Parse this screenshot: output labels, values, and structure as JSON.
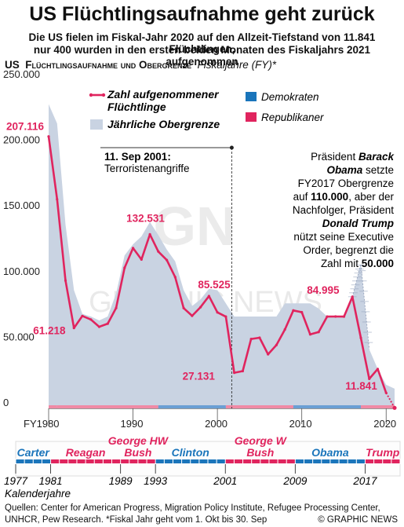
{
  "title": "US Flüchtlingsaufnahme geht zurück",
  "subtitle_line1": "Die US fielen im Fiskal-Jahr 2020 auf den Allzeit-Tiefstand von 11.841 Flüchtlingen,",
  "subtitle_line2": "nur 400 wurden in den ersten beiden Monaten des Fiskaljahrs 2021 aufgenommen",
  "chart_header": {
    "prefix": "US",
    "main": "Flüchtlingsaufnahme und Obergrenze",
    "suffix": "Fiskaljahre (FY)*"
  },
  "colors": {
    "admissions_line": "#e0245e",
    "ceiling_area": "#c9d3e2",
    "democrats": "#1a75bb",
    "republicans": "#e0245e",
    "axis_text": "#222222"
  },
  "chart_data": {
    "type": "line",
    "x_unit": "fiscal year",
    "xlim": [
      1980,
      2021
    ],
    "ylim": [
      0,
      250000
    ],
    "y_ticks": [
      {
        "value": 0,
        "label": "0"
      },
      {
        "value": 50000,
        "label": "50.000"
      },
      {
        "value": 100000,
        "label": "100.000"
      },
      {
        "value": 150000,
        "label": "150.000"
      },
      {
        "value": 200000,
        "label": "200.000"
      },
      {
        "value": 250000,
        "label": "250.000"
      }
    ],
    "x_ticks": [
      {
        "value": 1980,
        "label": "FY1980"
      },
      {
        "value": 1990,
        "label": "1990"
      },
      {
        "value": 2000,
        "label": "2000"
      },
      {
        "value": 2010,
        "label": "2010"
      },
      {
        "value": 2020,
        "label": "2020"
      }
    ],
    "grid": false,
    "legend_placement": "top",
    "admissions": {
      "name": "Zahl aufgenommener Flüchtlinge",
      "points": [
        [
          1980,
          207116
        ],
        [
          1981,
          159252
        ],
        [
          1982,
          97355
        ],
        [
          1983,
          61218
        ],
        [
          1984,
          70393
        ],
        [
          1985,
          67704
        ],
        [
          1986,
          62146
        ],
        [
          1987,
          64528
        ],
        [
          1988,
          76483
        ],
        [
          1989,
          107070
        ],
        [
          1990,
          122066
        ],
        [
          1991,
          113389
        ],
        [
          1992,
          132531
        ],
        [
          1993,
          119448
        ],
        [
          1994,
          112981
        ],
        [
          1995,
          99974
        ],
        [
          1996,
          76403
        ],
        [
          1997,
          70488
        ],
        [
          1998,
          77080
        ],
        [
          1999,
          85525
        ],
        [
          2000,
          73147
        ],
        [
          2001,
          69886
        ],
        [
          2002,
          27131
        ],
        [
          2003,
          28422
        ],
        [
          2004,
          52868
        ],
        [
          2005,
          53813
        ],
        [
          2006,
          41223
        ],
        [
          2007,
          48282
        ],
        [
          2008,
          60107
        ],
        [
          2009,
          74602
        ],
        [
          2010,
          73293
        ],
        [
          2011,
          56384
        ],
        [
          2012,
          58179
        ],
        [
          2013,
          69909
        ],
        [
          2014,
          69987
        ],
        [
          2015,
          69933
        ],
        [
          2016,
          84995
        ],
        [
          2017,
          53716
        ],
        [
          2018,
          22491
        ],
        [
          2019,
          30000
        ],
        [
          2020,
          11841
        ]
      ],
      "projection": [
        [
          2020,
          11841
        ],
        [
          2021,
          400
        ]
      ]
    },
    "ceiling": {
      "name": "Jährliche Obergrenze",
      "points": [
        [
          1980,
          231700
        ],
        [
          1981,
          217000
        ],
        [
          1982,
          140000
        ],
        [
          1983,
          90000
        ],
        [
          1984,
          72000
        ],
        [
          1985,
          70000
        ],
        [
          1986,
          67000
        ],
        [
          1987,
          70000
        ],
        [
          1988,
          87500
        ],
        [
          1989,
          116500
        ],
        [
          1990,
          125000
        ],
        [
          1991,
          131000
        ],
        [
          1992,
          142000
        ],
        [
          1993,
          132000
        ],
        [
          1994,
          121000
        ],
        [
          1995,
          112000
        ],
        [
          1996,
          90000
        ],
        [
          1997,
          78000
        ],
        [
          1998,
          83000
        ],
        [
          1999,
          91000
        ],
        [
          2000,
          90000
        ],
        [
          2001,
          80000
        ],
        [
          2002,
          70000
        ],
        [
          2003,
          70000
        ],
        [
          2004,
          70000
        ],
        [
          2005,
          70000
        ],
        [
          2006,
          70000
        ],
        [
          2007,
          70000
        ],
        [
          2008,
          80000
        ],
        [
          2009,
          80000
        ],
        [
          2010,
          80000
        ],
        [
          2011,
          80000
        ],
        [
          2012,
          76000
        ],
        [
          2013,
          70000
        ],
        [
          2014,
          70000
        ],
        [
          2015,
          70000
        ],
        [
          2016,
          85000
        ],
        [
          2017,
          110000
        ],
        [
          2018,
          45000
        ],
        [
          2019,
          30000
        ],
        [
          2020,
          18000
        ],
        [
          2021,
          15000
        ]
      ],
      "dashed_segment": [
        [
          2016,
          85000
        ],
        [
          2017,
          110000
        ],
        [
          2018,
          45000
        ]
      ]
    },
    "party_bar": [
      {
        "party": "rep",
        "from": 1980,
        "to": 1981
      },
      {
        "party": "rep",
        "from": 1981,
        "to": 1993
      },
      {
        "party": "dem",
        "from": 1993,
        "to": 2001
      },
      {
        "party": "rep",
        "from": 2001,
        "to": 2009
      },
      {
        "party": "dem",
        "from": 2009,
        "to": 2017
      },
      {
        "party": "rep",
        "from": 2017,
        "to": 2021
      }
    ],
    "point_labels": [
      {
        "year": 1980,
        "value": 207116,
        "text": "207.116"
      },
      {
        "year": 1983,
        "value": 61218,
        "text": "61.218"
      },
      {
        "year": 1992,
        "value": 132531,
        "text": "132.531"
      },
      {
        "year": 1999,
        "value": 85525,
        "text": "85.525"
      },
      {
        "year": 2002,
        "value": 27131,
        "text": "27.131"
      },
      {
        "year": 2016,
        "value": 84995,
        "text": "84.995"
      },
      {
        "year": 2020,
        "value": 11841,
        "text": "11.841"
      }
    ],
    "event_line": {
      "year": 2001.7,
      "label_bold": "11. Sep 2001:",
      "label": "Terroristenangriffe"
    },
    "annotation": {
      "line1_a": "Präsident ",
      "line1_b": "Barack",
      "line2_a": "Obama",
      "line2_b": " setzte",
      "line3": "FY2017 Obergrenze",
      "line4_a": "auf ",
      "line4_b": "110.000",
      "line4_c": ", aber der",
      "line5": "Nachfolger, Präsident",
      "line6": "Donald Trump",
      "line7": "nützt seine Executive",
      "line8": "Order, begrenzt die",
      "line9_a": "Zahl mit ",
      "line9_b": "50.000"
    },
    "legend": {
      "admissions": [
        "Zahl aufgenommener",
        "Flüchtlinge"
      ],
      "ceiling": "Jährliche Obergrenze",
      "democrats": "Demokraten",
      "republicans": "Republikaner"
    }
  },
  "presidents": {
    "x_min": 1977,
    "x_max": 2021,
    "bar_segments": [
      {
        "party": "dem",
        "from": 1977,
        "to": 1981
      },
      {
        "party": "rep",
        "from": 1981,
        "to": 1993
      },
      {
        "party": "dem",
        "from": 1993,
        "to": 2001
      },
      {
        "party": "rep",
        "from": 2001,
        "to": 2009
      },
      {
        "party": "dem",
        "from": 2009,
        "to": 2017
      },
      {
        "party": "rep",
        "from": 2017,
        "to": 2021
      }
    ],
    "names": [
      {
        "lines": [
          "Carter"
        ],
        "center": 1979,
        "party": "dem"
      },
      {
        "lines": [
          "Reagan"
        ],
        "center": 1985,
        "party": "rep"
      },
      {
        "lines": [
          "George HW",
          "Bush"
        ],
        "center": 1991,
        "party": "rep"
      },
      {
        "lines": [
          "Clinton"
        ],
        "center": 1997,
        "party": "dem"
      },
      {
        "lines": [
          "George W",
          "Bush"
        ],
        "center": 2005,
        "party": "rep"
      },
      {
        "lines": [
          "Obama"
        ],
        "center": 2013,
        "party": "dem"
      },
      {
        "lines": [
          "Trump"
        ],
        "center": 2019,
        "party": "rep"
      }
    ],
    "years": [
      {
        "year": 1977,
        "label": "1977"
      },
      {
        "year": 1981,
        "label": "1981"
      },
      {
        "year": 1989,
        "label": "1989"
      },
      {
        "year": 1993,
        "label": "1993"
      },
      {
        "year": 2001,
        "label": "2001"
      },
      {
        "year": 2009,
        "label": "2009"
      },
      {
        "year": 2017,
        "label": "2017"
      }
    ],
    "axis_label": "Kalenderjahre"
  },
  "watermark": {
    "logo": "GN",
    "text": "GRAPHIC NEWS"
  },
  "footer": {
    "sources_line1": "Quellen: Center for American Progress, Migration Policy Institute, Refugee Processing Center,",
    "sources_line2": "UNHCR, Pew Research. *Fiskal Jahr geht vom 1. Okt bis 30. Sep",
    "credit": "© GRAPHIC NEWS"
  }
}
